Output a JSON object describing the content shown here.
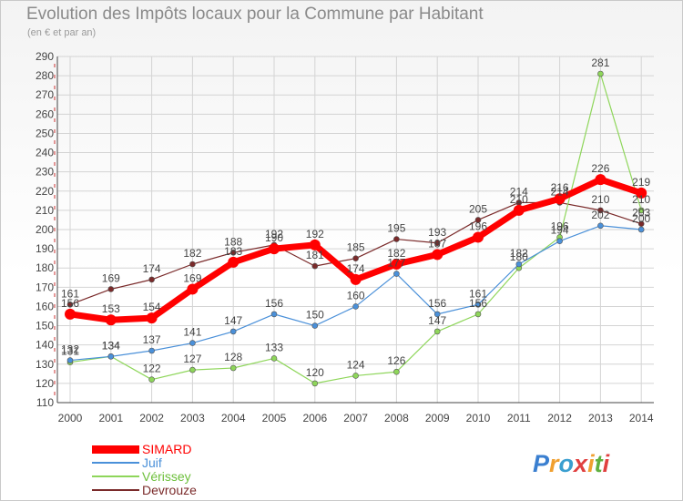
{
  "header": {
    "title": "Evolution des Impôts locaux pour la Commune par Habitant",
    "subtitle": "(en € et par an)"
  },
  "brand": {
    "name": "Proxiti"
  },
  "chart_data": {
    "type": "line",
    "title": "Evolution des Impôts locaux pour la Commune par Habitant",
    "subtitle": "(en € et par an)",
    "xlabel": "",
    "ylabel": "",
    "x": [
      "2000",
      "2001",
      "2002",
      "2003",
      "2004",
      "2005",
      "2006",
      "2007",
      "2008",
      "2009",
      "2010",
      "2011",
      "2012",
      "2013",
      "2014"
    ],
    "ylim": [
      110,
      290
    ],
    "yticks": [
      110,
      120,
      130,
      140,
      150,
      160,
      170,
      180,
      190,
      200,
      210,
      220,
      230,
      240,
      250,
      260,
      270,
      280,
      290
    ],
    "grid": true,
    "legend_position": "bottom-left",
    "series": [
      {
        "name": "SIMARD",
        "color": "#ff0000",
        "values": [
          156,
          153,
          154,
          169,
          183,
          190,
          192,
          174,
          182,
          187,
          196,
          210,
          216,
          226,
          219
        ]
      },
      {
        "name": "Juif",
        "color": "#4a90d9",
        "values": [
          132,
          134,
          137,
          141,
          147,
          156,
          150,
          160,
          177,
          156,
          161,
          182,
          194,
          202,
          200
        ]
      },
      {
        "name": "Vérissey",
        "color": "#8ed65a",
        "values": [
          131,
          134,
          122,
          127,
          128,
          133,
          120,
          124,
          126,
          147,
          156,
          180,
          196,
          281,
          210
        ]
      },
      {
        "name": "Devrouze",
        "color": "#7a2a2a",
        "values": [
          161,
          169,
          174,
          182,
          188,
          192,
          181,
          185,
          195,
          193,
          205,
          214,
          214,
          210,
          203
        ]
      }
    ]
  }
}
